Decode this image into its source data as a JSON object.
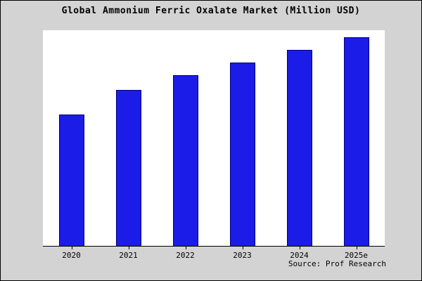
{
  "title": "Global Ammonium Ferric Oxalate Market (Million USD)",
  "source": "Source: Prof Research",
  "colors": {
    "background": "#d3d3d3",
    "plot_background": "#ffffff",
    "bar_fill": "#1c1ce8",
    "bar_edge": "#000080",
    "text": "#000000"
  },
  "chart_data": {
    "type": "bar",
    "title": "Global Ammonium Ferric Oxalate Market (Million USD)",
    "categories": [
      "2020",
      "2021",
      "2022",
      "2023",
      "2024",
      "2025e"
    ],
    "values": [
      63,
      75,
      82,
      88,
      94,
      100
    ],
    "xlabel": "",
    "ylabel": "",
    "ylim": [
      0,
      103.5
    ],
    "grid": false,
    "legend": false,
    "note": "No y-axis tick labels shown; values are relative estimates with 2025e = 100"
  }
}
